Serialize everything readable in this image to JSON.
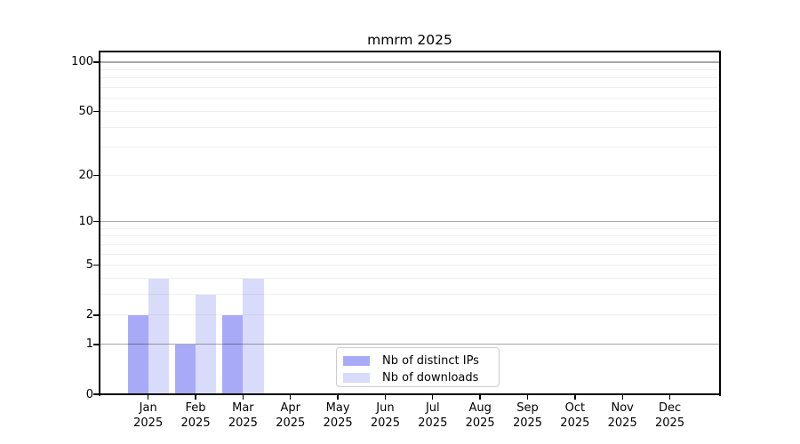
{
  "chart_data": {
    "type": "bar",
    "title": "mmrm 2025",
    "x": {
      "months": [
        "Jan",
        "Feb",
        "Mar",
        "Apr",
        "May",
        "Jun",
        "Jul",
        "Aug",
        "Sep",
        "Oct",
        "Nov",
        "Dec"
      ],
      "year": "2025"
    },
    "series": [
      {
        "name": "Nb of distinct IPs",
        "color": "#a8aaf8",
        "values": [
          2,
          1,
          2,
          0,
          0,
          0,
          0,
          0,
          0,
          0,
          0,
          0
        ]
      },
      {
        "name": "Nb of downloads",
        "color": "#d9dbfa",
        "values": [
          4,
          3,
          4,
          0,
          0,
          0,
          0,
          0,
          0,
          0,
          0,
          0
        ]
      }
    ],
    "y_axis": {
      "scale": "log1p",
      "ticks": [
        0,
        1,
        2,
        5,
        10,
        20,
        50,
        100
      ],
      "major_grid_values": [
        1,
        10,
        100
      ],
      "minor_grid_values": [
        2,
        3,
        4,
        5,
        6,
        7,
        8,
        9,
        20,
        30,
        40,
        50,
        60,
        70,
        80,
        90
      ],
      "ylim": [
        0,
        117
      ]
    },
    "legend": {
      "position": "inside-bottom-center"
    },
    "grid": "horizontal"
  },
  "colors": {
    "background": "#ffffff",
    "spine": "#000000",
    "major_grid": "rgba(0,0,0,0.34)",
    "minor_grid": "rgba(0,0,0,0.06)",
    "tick": "#000000",
    "text": "#000000",
    "legend_border": "#cccccc"
  }
}
